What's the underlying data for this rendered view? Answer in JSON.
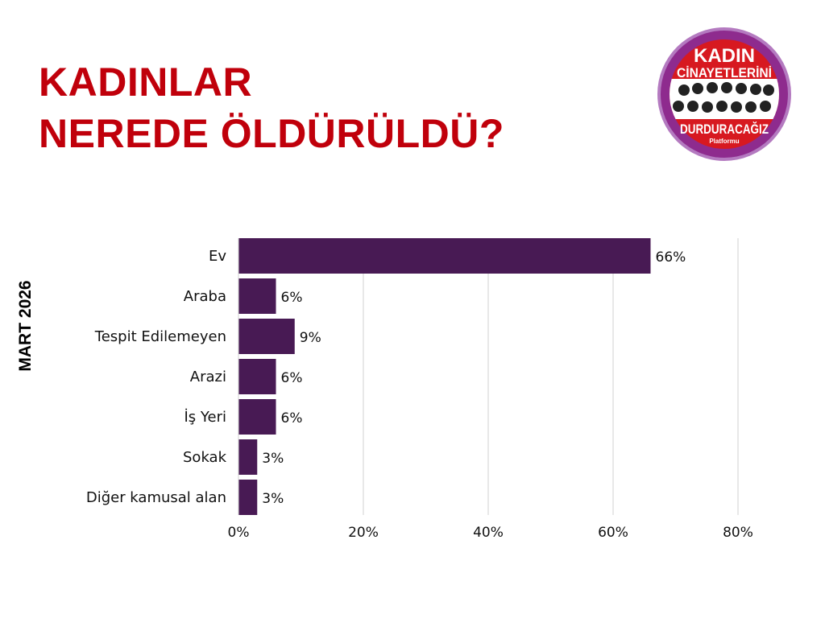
{
  "title": {
    "line1": "KADINLAR",
    "line2": "NEREDE ÖLDÜRÜLDÜ?"
  },
  "side_label": "MART 2026",
  "logo": {
    "line1": "KADIN",
    "line2": "CİNAYETLERİNİ",
    "line3": "DURDURACAĞIZ",
    "line4": "Platformu"
  },
  "colors": {
    "title": "#c0000b",
    "bar": "#481a54",
    "logo_purple": "#8e2b8e",
    "logo_red": "#d71920"
  },
  "chart_data": {
    "type": "bar",
    "orientation": "horizontal",
    "categories": [
      "Ev",
      "Araba",
      "Tespit Edilemeyen",
      "Arazi",
      "İş Yeri",
      "Sokak",
      "Diğer kamusal alan"
    ],
    "values": [
      66,
      6,
      9,
      6,
      6,
      3,
      3
    ],
    "data_labels": [
      "66%",
      "6%",
      "9%",
      "6%",
      "6%",
      "3%",
      "3%"
    ],
    "xlim": [
      0,
      80
    ],
    "xticks": [
      0,
      20,
      40,
      60,
      80
    ],
    "xtick_labels": [
      "0%",
      "20%",
      "40%",
      "60%",
      "80%"
    ],
    "grid": "vertical",
    "title": "",
    "xlabel": "",
    "ylabel": ""
  }
}
